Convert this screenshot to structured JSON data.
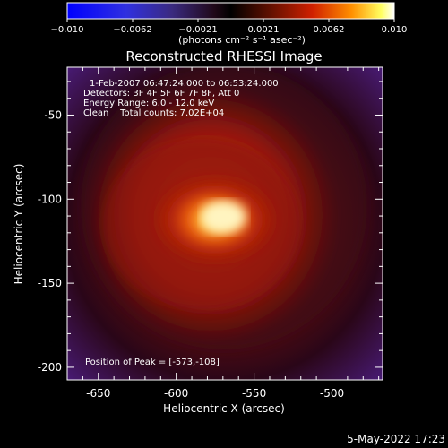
{
  "colorbar": {
    "ticks": [
      "−0.010",
      "−0.0062",
      "−0.0021",
      "0.0021",
      "0.0062",
      "0.010"
    ],
    "units": "(photons cm⁻² s⁻¹ asec⁻²)"
  },
  "title": "Reconstructed RHESSI Image",
  "info": {
    "time": "1-Feb-2007 06:47:24.000 to 06:53:24.000",
    "detectors": "Detectors: 3F 4F 5F 6F 7F 8F, Att 0",
    "energy": "Energy Range: 6.0 - 12.0 keV",
    "clean": "Clean    Total counts: 7.02E+04"
  },
  "peak_label": "Position of Peak = [-573,-108]",
  "axes": {
    "xlabel": "Heliocentric X (arcsec)",
    "ylabel": "Heliocentric Y (arcsec)",
    "xticks": [
      "-650",
      "-600",
      "-550",
      "-500"
    ],
    "yticks": [
      "-50",
      "-100",
      "-150",
      "-200"
    ]
  },
  "footer_date": "5-May-2022 17:23",
  "colors": {
    "bg": "#000000",
    "text": "#ffffff",
    "halo": "#551a8b",
    "peak": "#ffffc8"
  }
}
